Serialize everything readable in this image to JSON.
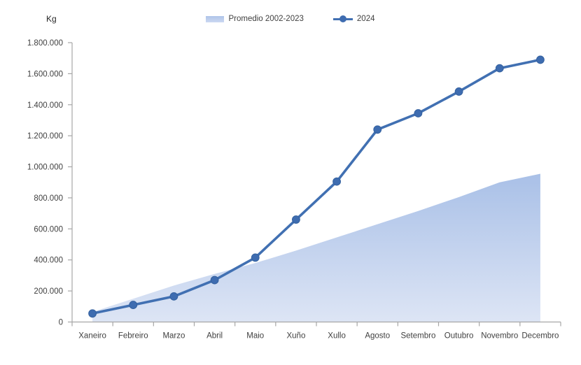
{
  "chart": {
    "unit_label": "Kg"
  },
  "legend": {
    "items": [
      {
        "label": "Promedio 2002-2023",
        "swatch": "area-swatch"
      },
      {
        "label": "2024",
        "swatch": "line-marker"
      }
    ]
  },
  "colors": {
    "line": "#4170b2",
    "marker_fill": "#3e6cb0",
    "marker_stroke": "#34619f",
    "area_top": "#a9c0e7",
    "area_bottom": "#dde5f5",
    "axis": "#a6a6a6",
    "tick": "#a6a6a6",
    "text": "#404040"
  },
  "chart_data": {
    "type": "line",
    "title": "",
    "xlabel": "",
    "ylabel": "Kg",
    "ylim": [
      0,
      1800000
    ],
    "ytick_step": 200000,
    "ytick_labels": [
      "0",
      "200.000",
      "400.000",
      "600.000",
      "800.000",
      "1.000.000",
      "1.200.000",
      "1.400.000",
      "1.600.000",
      "1.800.000"
    ],
    "grid": false,
    "legend_position": "top-center",
    "categories": [
      "Xaneiro",
      "Febreiro",
      "Marzo",
      "Abril",
      "Maio",
      "Xuño",
      "Xullo",
      "Agosto",
      "Setembro",
      "Outubro",
      "Novembro",
      "Decembro"
    ],
    "series": [
      {
        "name": "Promedio 2002-2023",
        "type": "area",
        "values": [
          65000,
          150000,
          235000,
          310000,
          380000,
          460000,
          545000,
          630000,
          715000,
          805000,
          900000,
          955000
        ]
      },
      {
        "name": "2024",
        "type": "line-with-markers",
        "values": [
          55000,
          110000,
          165000,
          270000,
          415000,
          660000,
          905000,
          1240000,
          1345000,
          1485000,
          1635000,
          1690000
        ]
      }
    ]
  }
}
